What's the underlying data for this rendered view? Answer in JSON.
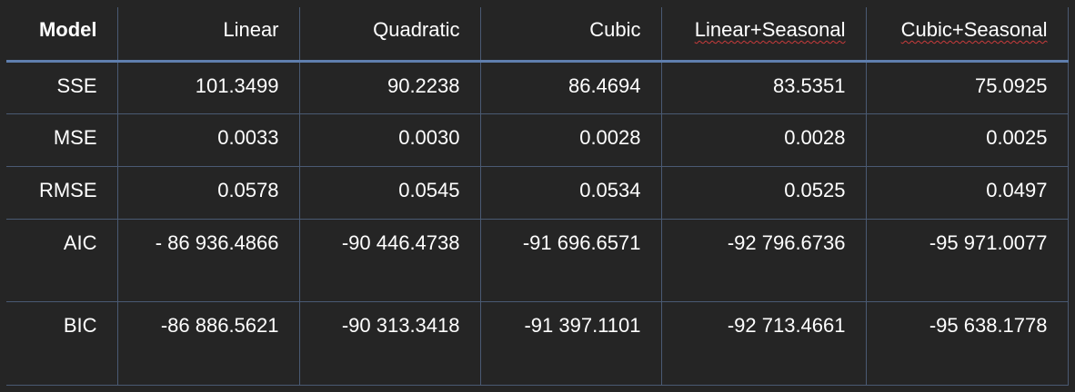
{
  "table": {
    "header": [
      "Model",
      "Linear",
      "Quadratic",
      "Cubic",
      "Linear+Seasonal",
      "Cubic+Seasonal"
    ],
    "rows": [
      {
        "label": "SSE",
        "values": [
          "101.3499",
          "90.2238",
          "86.4694",
          "83.5351",
          "75.0925"
        ]
      },
      {
        "label": "MSE",
        "values": [
          "0.0033",
          "0.0030",
          "0.0028",
          "0.0028",
          "0.0025"
        ]
      },
      {
        "label": "RMSE",
        "values": [
          "0.0578",
          "0.0545",
          "0.0534",
          "0.0525",
          "0.0497"
        ]
      },
      {
        "label": "AIC",
        "values": [
          "- 86 936.4866",
          "-90 446.4738",
          "-91 696.6571",
          "-92 796.6736",
          "-95 971.0077"
        ]
      },
      {
        "label": "BIC",
        "values": [
          "-86 886.5621",
          "-90 313.3418",
          "-91 397.1101",
          "-92 713.4661",
          "-95 638.1778"
        ]
      }
    ]
  },
  "colors": {
    "background": "#252525",
    "grid": "#4a5a73",
    "header_rule": "#5f7fae",
    "spellcheck": "#c93b3b"
  }
}
